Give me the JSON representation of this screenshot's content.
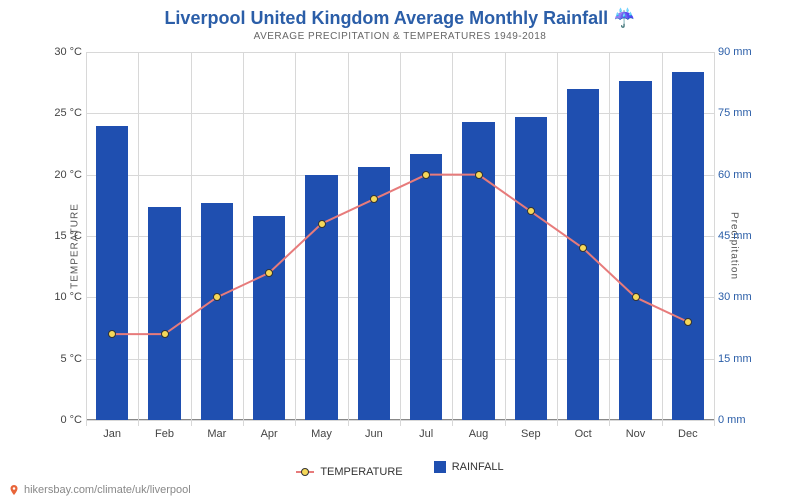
{
  "title": "Liverpool United Kingdom Average Monthly Rainfall ☔",
  "subtitle": "AVERAGE PRECIPITATION & TEMPERATURES 1949-2018",
  "source": "hikersbay.com/climate/uk/liverpool",
  "chart": {
    "type": "combo-bar-line",
    "background_color": "#ffffff",
    "grid_color": "#d8d8d8",
    "axis_color": "#888888",
    "categories": [
      "Jan",
      "Feb",
      "Mar",
      "Apr",
      "May",
      "Jun",
      "Jul",
      "Aug",
      "Sep",
      "Oct",
      "Nov",
      "Dec"
    ],
    "left_axis": {
      "label": "TEMPERATURE",
      "unit": "°C",
      "min": 0,
      "max": 30,
      "step": 5,
      "tick_color": "#444444",
      "label_fontsize": 10
    },
    "right_axis": {
      "label": "Precipitation",
      "unit": "mm",
      "min": 0,
      "max": 90,
      "step": 15,
      "tick_color": "#2b5ea8",
      "label_fontsize": 10
    },
    "bars": {
      "name": "RAINFALL",
      "values": [
        72,
        52,
        53,
        50,
        60,
        62,
        65,
        73,
        74,
        81,
        83,
        85
      ],
      "color": "#1f4fb0",
      "width_ratio": 0.62
    },
    "line": {
      "name": "TEMPERATURE",
      "values": [
        7,
        7,
        10,
        12,
        16,
        18,
        20,
        20,
        17,
        14,
        10,
        8
      ],
      "line_color": "#e77b7b",
      "line_width": 2,
      "marker_fill": "#f5d859",
      "marker_stroke": "#333333",
      "marker_size": 8
    },
    "legend": {
      "temp_label": "TEMPERATURE",
      "rain_label": "RAINFALL"
    }
  }
}
